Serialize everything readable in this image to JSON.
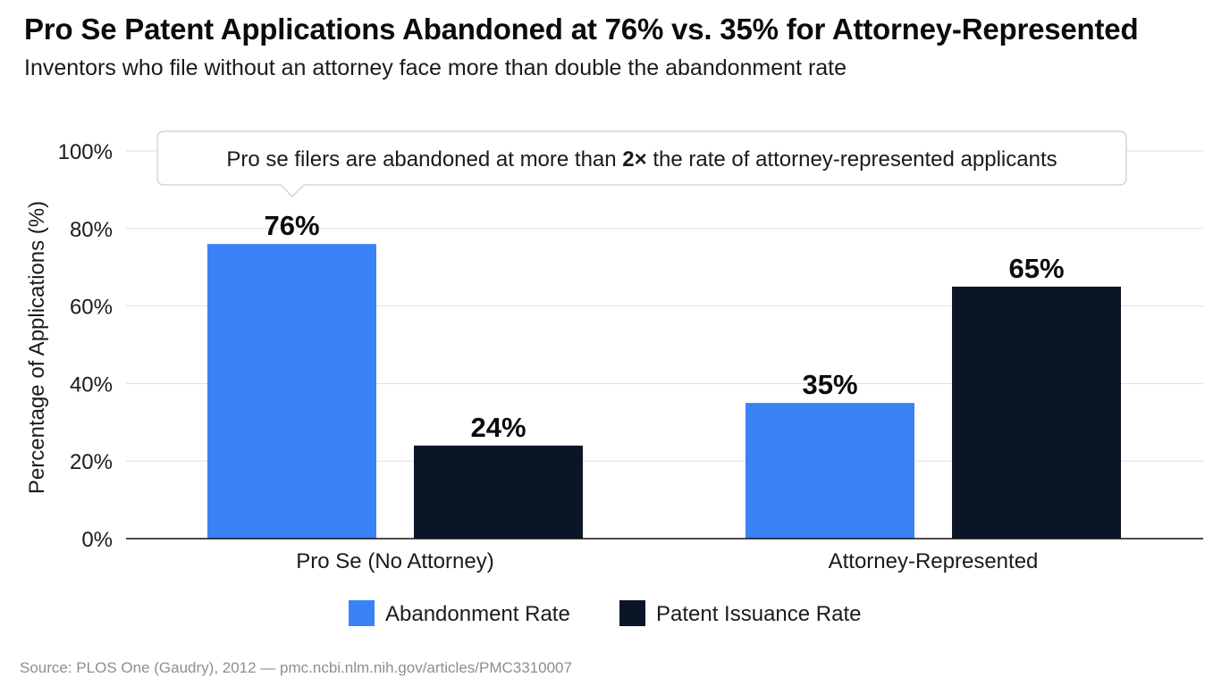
{
  "header": {
    "title": "Pro Se Patent Applications Abandoned at 76% vs. 35% for Attorney-Represented",
    "subtitle": "Inventors who file without an attorney face more than double the abandonment rate"
  },
  "annotation": {
    "before": "Pro se filers are abandoned at more than ",
    "bold": "2×",
    "after": " the rate of attorney-represented applicants"
  },
  "source": "Source: PLOS One (Gaudry), 2012 — pmc.ncbi.nlm.nih.gov/articles/PMC3310007",
  "chart_data": {
    "type": "bar",
    "title": "Pro Se Patent Applications Abandoned at 76% vs. 35% for Attorney-Represented",
    "subtitle": "Inventors who file without an attorney face more than double the abandonment rate",
    "categories": [
      "Pro Se (No Attorney)",
      "Attorney-Represented"
    ],
    "series": [
      {
        "name": "Abandonment Rate",
        "values": [
          76,
          35
        ],
        "color": "#3b82f6"
      },
      {
        "name": "Patent Issuance Rate",
        "values": [
          24,
          65
        ],
        "color": "#0a1628"
      }
    ],
    "data_labels": [
      [
        "76%",
        "35%"
      ],
      [
        "24%",
        "65%"
      ]
    ],
    "xlabel": "",
    "ylabel": "Percentage of Applications (%)",
    "ylim": [
      0,
      100
    ],
    "yticks": [
      0,
      20,
      40,
      60,
      80,
      100
    ],
    "ytick_labels": [
      "0%",
      "20%",
      "40%",
      "60%",
      "80%",
      "100%"
    ],
    "grid": true,
    "legend_position": "bottom-center"
  }
}
